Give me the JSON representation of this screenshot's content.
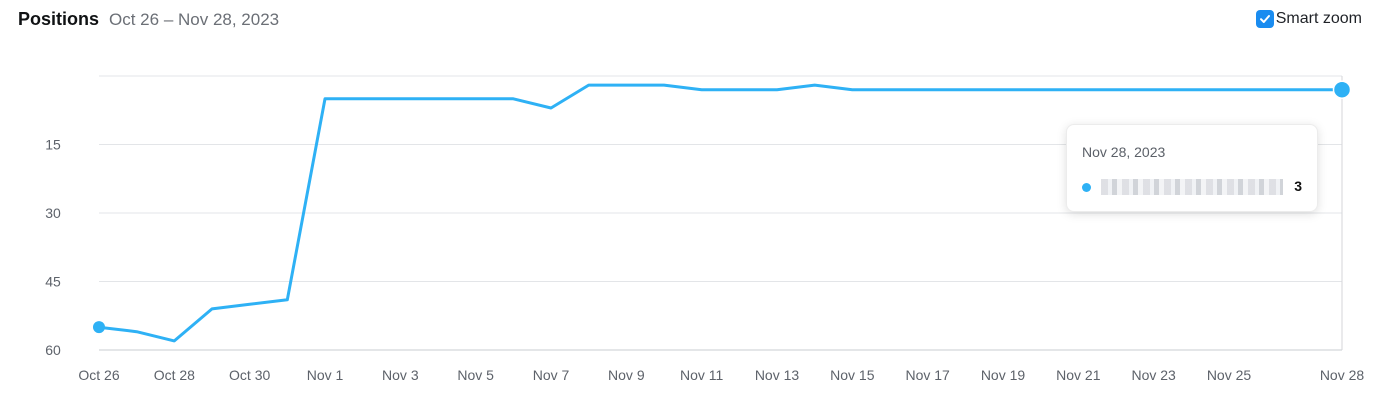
{
  "header": {
    "title": "Positions",
    "date_range": "Oct 26 – Nov 28, 2023"
  },
  "smart_zoom": {
    "label": "Smart zoom",
    "checked": true
  },
  "tooltip": {
    "date": "Nov 28, 2023",
    "value": "3"
  },
  "colors": {
    "series": "#2eb1f5",
    "grid": "#e3e5e8",
    "axis_text": "#5d626a",
    "checkbox": "#1a8cf0"
  },
  "chart_data": {
    "type": "line",
    "y_reversed": true,
    "ylim": [
      0,
      60
    ],
    "y_ticks": [
      "15",
      "30",
      "45",
      "60"
    ],
    "y_tick_values": [
      15,
      30,
      45,
      60
    ],
    "x": [
      "Oct 26",
      "Oct 27",
      "Oct 28",
      "Oct 29",
      "Oct 30",
      "Oct 31",
      "Nov 1",
      "Nov 2",
      "Nov 3",
      "Nov 4",
      "Nov 5",
      "Nov 6",
      "Nov 7",
      "Nov 8",
      "Nov 9",
      "Nov 10",
      "Nov 11",
      "Nov 12",
      "Nov 13",
      "Nov 14",
      "Nov 15",
      "Nov 16",
      "Nov 17",
      "Nov 18",
      "Nov 19",
      "Nov 20",
      "Nov 21",
      "Nov 22",
      "Nov 23",
      "Nov 24",
      "Nov 25",
      "Nov 26",
      "Nov 27",
      "Nov 28"
    ],
    "x_tick_labels": [
      "Oct 26",
      "Oct 28",
      "Oct 30",
      "Nov 1",
      "Nov 3",
      "Nov 5",
      "Nov 7",
      "Nov 9",
      "Nov 11",
      "Nov 13",
      "Nov 15",
      "Nov 17",
      "Nov 19",
      "Nov 21",
      "Nov 23",
      "Nov 25",
      "Nov 28"
    ],
    "series": [
      {
        "values": [
          55,
          56,
          58,
          51,
          50,
          49,
          5,
          5,
          5,
          5,
          5,
          5,
          7,
          2,
          2,
          2,
          3,
          3,
          3,
          2,
          3,
          3,
          3,
          3,
          3,
          3,
          3,
          3,
          3,
          3,
          3,
          3,
          3,
          3
        ]
      }
    ],
    "grid": true
  }
}
